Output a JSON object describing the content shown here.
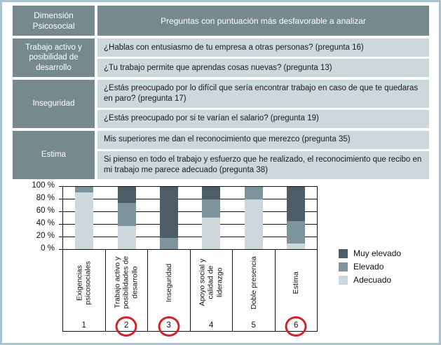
{
  "table": {
    "header": {
      "dimension_label": "Dimensión Psicosocial",
      "questions_label": "Preguntas con puntuación más desfavorable a analizar"
    },
    "groups": [
      {
        "dimension": "Trabajo activo y posibilidad de desarrollo",
        "questions": [
          "¿Hablas con entusiasmo de tu empresa a otras personas? (pregunta 16)",
          "¿Tu trabajo permite que aprendas cosas nuevas? (pregunta 13)"
        ]
      },
      {
        "dimension": "Inseguridad",
        "questions": [
          "¿Estás preocupado por lo difícil que sería encontrar trabajo en caso de que te quedaras en paro? (pregunta 17)",
          "¿Estás preocupado por si te varían el salario? (pregunta 19)"
        ]
      },
      {
        "dimension": "Estima",
        "questions": [
          "Mis superiores me dan el reconocimiento que merezco (pregunta 35)",
          "Si pienso en todo el trabajo y esfuerzo que he realizado, el reconocimiento que recibo en mi trabajo me parece adecuado (pregunta 38)"
        ]
      }
    ]
  },
  "chart_data": {
    "type": "bar",
    "stacked": true,
    "units": "percent",
    "title": "",
    "xlabel": "",
    "ylabel": "",
    "ylim": [
      0,
      100
    ],
    "grid": true,
    "y_ticks": [
      "100 %",
      "80 %",
      "60 %",
      "40 %",
      "20 %",
      "0 %"
    ],
    "categories": [
      "Exigencias psicosociales",
      "Trabajo activo y posibilidades de desarrollo",
      "Inseguridad",
      "Apoyo social y calidad de liderazgo",
      "Doble presencia",
      "Estima"
    ],
    "category_numbers": [
      "1",
      "2",
      "3",
      "4",
      "5",
      "6"
    ],
    "circled_category_numbers": [
      "2",
      "3",
      "6"
    ],
    "series": [
      {
        "name": "Adecuado",
        "color": "#ccd8dc",
        "values": [
          91,
          37,
          0,
          51,
          80,
          9
        ]
      },
      {
        "name": "Elevado",
        "color": "#7d939e",
        "values": [
          9,
          37,
          18,
          29,
          20,
          36
        ]
      },
      {
        "name": "Muy elevado",
        "color": "#4d5d68",
        "values": [
          0,
          26,
          82,
          20,
          0,
          55
        ]
      }
    ],
    "legend": {
      "position": "right",
      "items": [
        {
          "label": "Muy elevado",
          "color": "#4d5d68"
        },
        {
          "label": "Elevado",
          "color": "#7d939e"
        },
        {
          "label": "Adecuado",
          "color": "#ccd8dc"
        }
      ]
    },
    "annotation_circle_color": "#d2232a"
  },
  "colors": {
    "frame": "#a9c4cf",
    "table_header_bg": "#75898f",
    "table_dimension_bg": "#75898f",
    "table_question_bg": "#ccd8dc",
    "header_text": "#ffffff",
    "question_text": "#1a1a1a"
  }
}
